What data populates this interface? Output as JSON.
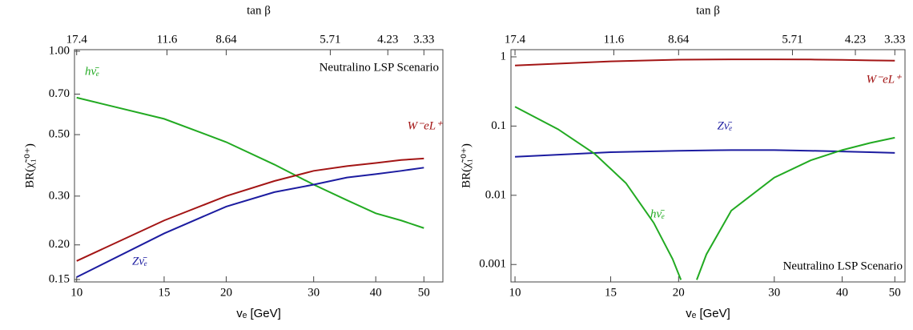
{
  "chart_data": [
    {
      "type": "line",
      "title": "Neutralino LSP Scenario",
      "xlabel": "vₑ [GeV]",
      "ylabel": "BR(χ̃₁⁰⁺)",
      "x2label": "tan β",
      "xscale": "log",
      "yscale": "log",
      "xlim": [
        9.9,
        54.6
      ],
      "ylim": [
        0.147,
        1.013
      ],
      "xticks": [
        10,
        15,
        20,
        30,
        40,
        50
      ],
      "yticks": [
        {
          "value": 0.15,
          "label": "0.15"
        },
        {
          "value": 0.2,
          "label": "0.20"
        },
        {
          "value": 0.3,
          "label": "0.30"
        },
        {
          "value": 0.5,
          "label": "0.50"
        },
        {
          "value": 0.7,
          "label": "0.70"
        },
        {
          "value": 1,
          "label": "1.00"
        }
      ],
      "x2ticks": [
        {
          "value": 10,
          "label": "17.4"
        },
        {
          "value": 15.2,
          "label": "11.6"
        },
        {
          "value": 20,
          "label": "8.64"
        },
        {
          "value": 32.4,
          "label": "5.71"
        },
        {
          "value": 42.3,
          "label": "4.23"
        },
        {
          "value": 50,
          "label": "3.33"
        }
      ],
      "series": [
        {
          "name": "hν̄ₑ",
          "color": "#22aa22",
          "x": [
            10,
            15,
            20,
            25,
            30,
            35,
            40,
            45,
            50
          ],
          "values": [
            0.68,
            0.57,
            0.47,
            0.39,
            0.33,
            0.29,
            0.26,
            0.245,
            0.23
          ]
        },
        {
          "name": "W⁻eL⁺",
          "color": "#a31515",
          "x": [
            10,
            15,
            20,
            25,
            30,
            35,
            40,
            45,
            50
          ],
          "values": [
            0.175,
            0.245,
            0.3,
            0.34,
            0.37,
            0.385,
            0.395,
            0.405,
            0.41
          ]
        },
        {
          "name": "Zν̄ₑ",
          "color": "#1c1ca0",
          "x": [
            10,
            15,
            20,
            25,
            30,
            35,
            40,
            45,
            50
          ],
          "values": [
            0.153,
            0.22,
            0.275,
            0.31,
            0.33,
            0.35,
            0.36,
            0.37,
            0.38
          ]
        }
      ]
    },
    {
      "type": "line",
      "title": "Neutralino LSP Scenario",
      "xlabel": "vₑ [GeV]",
      "ylabel": "BR(χ̃₁⁰⁺)",
      "x2label": "tan β",
      "xscale": "log",
      "yscale": "log",
      "xlim": [
        9.83,
        52.2
      ],
      "ylim": [
        0.00056,
        1.27
      ],
      "xticks": [
        10,
        15,
        20,
        30,
        40,
        50
      ],
      "yticks": [
        0.001,
        0.01,
        0.1,
        1
      ],
      "x2ticks": [
        {
          "value": 10,
          "label": "17.4"
        },
        {
          "value": 15.2,
          "label": "11.6"
        },
        {
          "value": 20,
          "label": "8.64"
        },
        {
          "value": 32.4,
          "label": "5.71"
        },
        {
          "value": 42.3,
          "label": "4.23"
        },
        {
          "value": 50,
          "label": "3.33"
        }
      ],
      "series": [
        {
          "name": "W⁻eL⁺",
          "color": "#a31515",
          "x": [
            10,
            15,
            20,
            25,
            30,
            35,
            40,
            45,
            50
          ],
          "values": [
            0.75,
            0.86,
            0.91,
            0.92,
            0.92,
            0.915,
            0.905,
            0.89,
            0.88
          ]
        },
        {
          "name": "Zν̄ₑ",
          "color": "#1c1ca0",
          "x": [
            10,
            15,
            20,
            25,
            30,
            35,
            40,
            45,
            50
          ],
          "values": [
            0.036,
            0.042,
            0.044,
            0.045,
            0.045,
            0.044,
            0.043,
            0.042,
            0.041
          ]
        },
        {
          "name": "hν̄ₑ",
          "color": "#22aa22",
          "x": [
            10,
            12,
            14,
            16,
            18,
            19.5,
            20.2,
            21,
            21.6,
            22.5,
            25,
            30,
            35,
            40,
            45,
            50
          ],
          "values": [
            0.19,
            0.09,
            0.04,
            0.015,
            0.004,
            0.0012,
            0.0006,
            null,
            0.0006,
            0.0014,
            0.006,
            0.018,
            0.032,
            0.045,
            0.057,
            0.068
          ]
        }
      ]
    }
  ]
}
